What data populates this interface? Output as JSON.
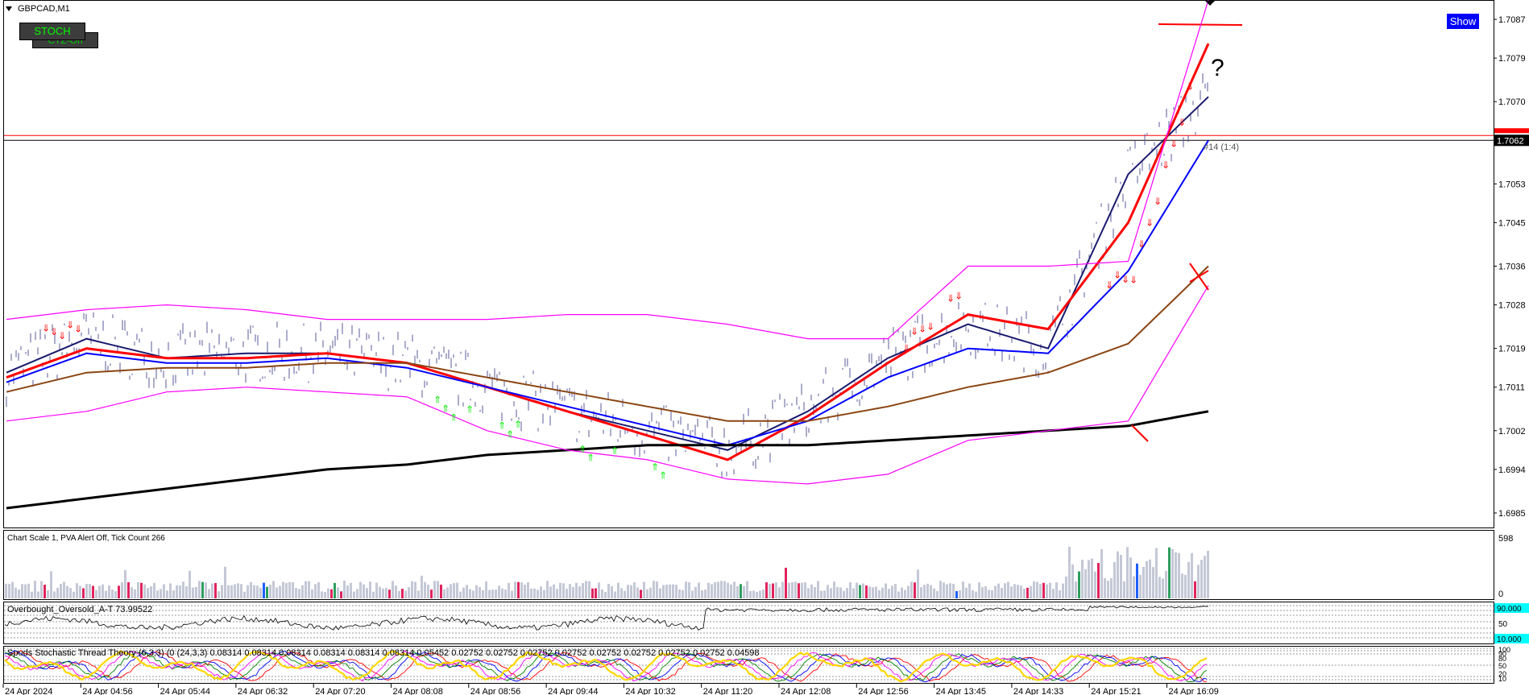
{
  "chart": {
    "symbol_label": "GBPCAD,M1",
    "stoch_button": "STOCH",
    "ctz_button": "CTZ-On",
    "show_button": "Show",
    "question_mark": "?",
    "trade_label": "#14 (1:4)",
    "price_ticks": [
      "1.7087",
      "1.7079",
      "1.7070",
      "1.7062",
      "1.7053",
      "1.7045",
      "1.7036",
      "1.7028",
      "1.7019",
      "1.7011",
      "1.7002",
      "1.6994",
      "1.6985"
    ],
    "current_price": "1.7062",
    "line_price": "1.7063",
    "time_ticks": [
      "24 Apr 2024",
      "24 Apr 04:56",
      "24 Apr 05:44",
      "24 Apr 06:32",
      "24 Apr 07:20",
      "24 Apr 08:08",
      "24 Apr 08:56",
      "24 Apr 09:44",
      "24 Apr 10:32",
      "24 Apr 11:20",
      "24 Apr 12:08",
      "24 Apr 12:56",
      "24 Apr 13:45",
      "24 Apr 14:33",
      "24 Apr 15:21",
      "24 Apr 16:09"
    ]
  },
  "volume_panel": {
    "label": "Chart Scale 1,  PVA Alert Off,  Tick Count 266",
    "scale_top": "598",
    "scale_bottom": "0"
  },
  "obos_panel": {
    "label": "Overbought_Oversold_A-T 73.99522",
    "level_top": "90.000",
    "level_mid": "50",
    "level_bottom": "10.000"
  },
  "stoch_panel": {
    "label": "Spuds Stochastic Thread Theory (6,3,3) (0 (24,3,3) 0.08314 0.08314 0.08314 0.08314 0.08314 0.08314 0.05452 0.02752 0.02752 0.02752 0.02752 0.02752 0.02752 0.02752 0.02752 0.04598",
    "levels": [
      "100",
      "90",
      "80",
      "50",
      "20",
      "10"
    ]
  },
  "chart_data": {
    "type": "line",
    "symbol": "GBPCAD",
    "timeframe": "M1",
    "x_labels": [
      "24 Apr 2024",
      "24 Apr 04:56",
      "24 Apr 05:44",
      "24 Apr 06:32",
      "24 Apr 07:20",
      "24 Apr 08:08",
      "24 Apr 08:56",
      "24 Apr 09:44",
      "24 Apr 10:32",
      "24 Apr 11:20",
      "24 Apr 12:08",
      "24 Apr 12:56",
      "24 Apr 13:45",
      "24 Apr 14:33",
      "24 Apr 15:21",
      "24 Apr 16:09"
    ],
    "ylim": [
      1.6982,
      1.7091
    ],
    "horizontal_lines": [
      1.7063,
      1.7062
    ],
    "resistance_line": 1.7086,
    "series": [
      {
        "color": "#1a1a6e",
        "values": [
          1.7014,
          1.7021,
          1.7017,
          1.7018,
          1.7018,
          1.7016,
          1.7011,
          1.7006,
          1.7002,
          1.6998,
          1.7006,
          1.7017,
          1.7024,
          1.7019,
          1.7055,
          1.7071
        ]
      },
      {
        "color": "#ff0000",
        "values": [
          1.7013,
          1.7019,
          1.7017,
          1.7017,
          1.7018,
          1.7016,
          1.7011,
          1.7006,
          1.7001,
          1.6996,
          1.7005,
          1.7016,
          1.7026,
          1.7023,
          1.7045,
          1.7082
        ]
      },
      {
        "color": "#0000ff",
        "values": [
          1.7012,
          1.7018,
          1.7016,
          1.7016,
          1.7017,
          1.7015,
          1.7011,
          1.7007,
          1.7003,
          1.6999,
          1.7004,
          1.7013,
          1.7019,
          1.7018,
          1.7035,
          1.7062
        ]
      },
      {
        "color": "#8b4513",
        "values": [
          1.701,
          1.7014,
          1.7015,
          1.7015,
          1.7016,
          1.7016,
          1.7013,
          1.701,
          1.7007,
          1.7004,
          1.7004,
          1.7007,
          1.7011,
          1.7014,
          1.702,
          1.7036
        ]
      },
      {
        "color": "#000000",
        "values": [
          1.6986,
          1.6988,
          1.699,
          1.6992,
          1.6994,
          1.6995,
          1.6997,
          1.6998,
          1.6999,
          1.6999,
          1.6999,
          1.7,
          1.7001,
          1.7002,
          1.7003,
          1.7006
        ]
      },
      {
        "color": "#ff00ff",
        "values": [
          1.7025,
          1.7027,
          1.7028,
          1.7027,
          1.7025,
          1.7025,
          1.7025,
          1.7026,
          1.7026,
          1.7024,
          1.7021,
          1.7021,
          1.7036,
          1.7036,
          1.7037,
          1.7091
        ]
      },
      {
        "color": "#ff00ff",
        "values": [
          1.7004,
          1.7006,
          1.701,
          1.7011,
          1.701,
          1.7009,
          1.7002,
          1.6998,
          1.6996,
          1.6992,
          1.6991,
          1.6993,
          1.7,
          1.7002,
          1.7004,
          1.7032
        ]
      }
    ]
  }
}
